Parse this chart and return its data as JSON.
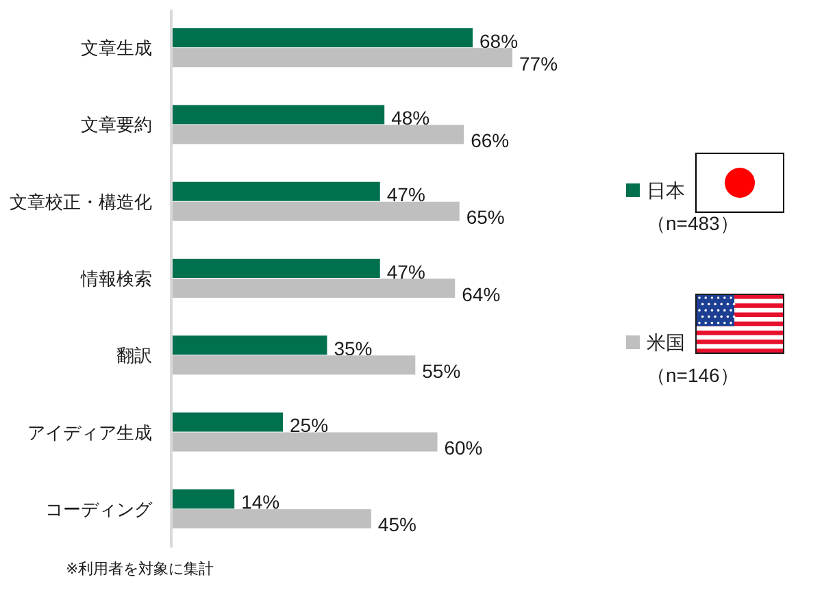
{
  "chart_data": {
    "type": "bar",
    "orientation": "horizontal",
    "categories": [
      "文章生成",
      "文章要約",
      "文章校正・構造化",
      "情報検索",
      "翻訳",
      "アイディア生成",
      "コーディング"
    ],
    "series": [
      {
        "name": "日本（n=483）",
        "color": "#00704f",
        "values": [
          68,
          48,
          47,
          47,
          35,
          25,
          14
        ],
        "value_labels": [
          "68%",
          "48%",
          "47%",
          "47%",
          "35%",
          "25%",
          "14%"
        ]
      },
      {
        "name": "米国（n=146）",
        "color": "#bfbfbf",
        "values": [
          77,
          66,
          65,
          64,
          55,
          60,
          45
        ],
        "value_labels": [
          "77%",
          "66%",
          "65%",
          "64%",
          "55%",
          "60%",
          "45%"
        ]
      }
    ],
    "legend": "right",
    "annotations": [
      "※利用者を対象に集計"
    ]
  }
}
